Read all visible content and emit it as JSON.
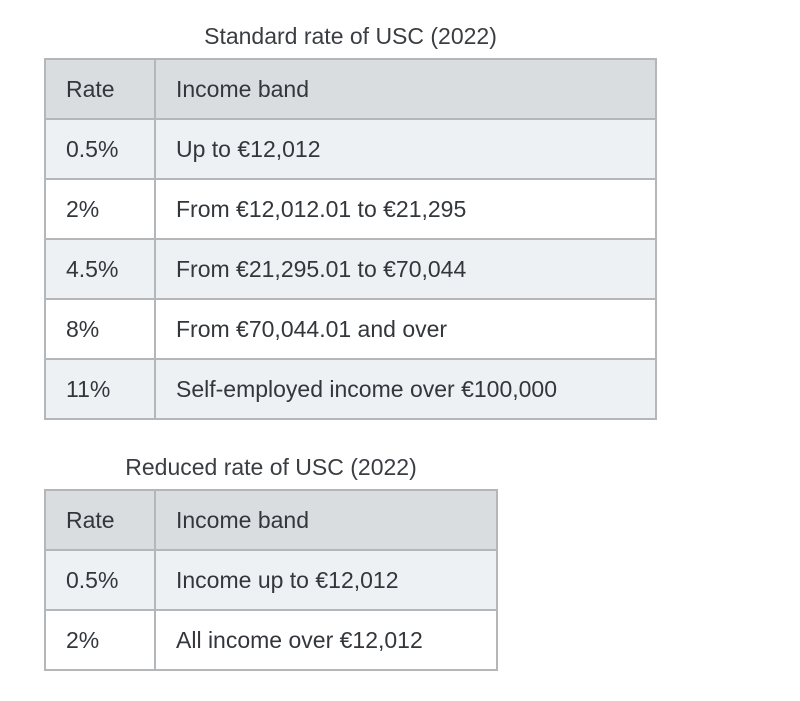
{
  "colors": {
    "page_bg": "#ffffff",
    "header_bg": "#d9dde0",
    "row_alt_bg": "#eef1f4",
    "row_bg": "#ffffff",
    "border_outer": "#9c9ea1",
    "border_inner": "#b4b7b9",
    "text": "#33373b"
  },
  "tables": [
    {
      "title": "Standard rate of USC (2022)",
      "columns": {
        "rate": "Rate",
        "income_band": "Income band"
      },
      "rows": [
        [
          "0.5%",
          "Up to €12,012"
        ],
        [
          "2%",
          "From €12,012.01 to €21,295"
        ],
        [
          "4.5%",
          "From €21,295.01 to €70,044"
        ],
        [
          "8%",
          "From €70,044.01 and over"
        ],
        [
          "11%",
          "Self-employed income over €100,000"
        ]
      ]
    },
    {
      "title": "Reduced rate of USC (2022)",
      "columns": {
        "rate": "Rate",
        "income_band": "Income band"
      },
      "rows": [
        [
          "0.5%",
          "Income up to €12,012"
        ],
        [
          "2%",
          "All income over €12,012"
        ]
      ]
    }
  ]
}
